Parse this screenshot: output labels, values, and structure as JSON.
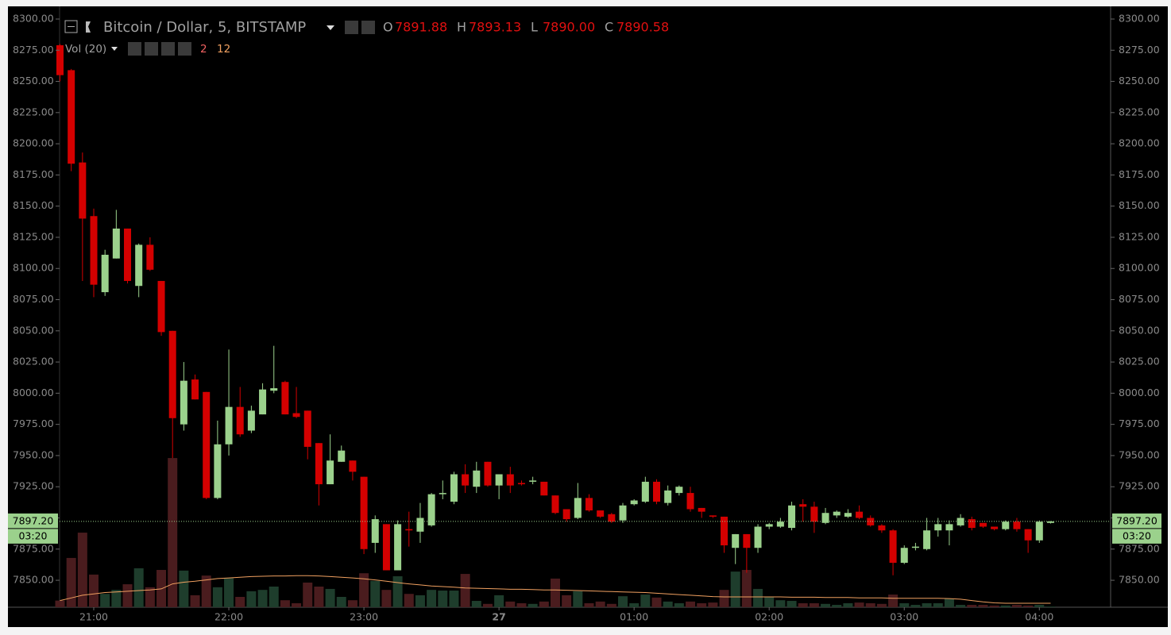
{
  "chart_data": {
    "type": "candlestick",
    "title": "Bitcoin / Dollar, 5, BITSTAMP",
    "legend": {
      "ohlc": [
        {
          "key": "O",
          "value": "7891.88"
        },
        {
          "key": "H",
          "value": "7893.13"
        },
        {
          "key": "L",
          "value": "7890.00"
        },
        {
          "key": "C",
          "value": "7890.58"
        }
      ],
      "volume_title": "Vol (20)"
    },
    "categories": [
      null,
      null,
      null,
      "21:00",
      null,
      null,
      null,
      null,
      null,
      null,
      null,
      null,
      null,
      null,
      null,
      "22:00",
      null,
      null,
      null,
      null,
      null,
      null,
      null,
      null,
      null,
      null,
      null,
      "23:00",
      null,
      null,
      null,
      null,
      null,
      null,
      null,
      null,
      null,
      null,
      null,
      "27",
      null,
      null,
      null,
      null,
      null,
      null,
      null,
      null,
      null,
      null,
      null,
      "01:00",
      null,
      null,
      null,
      null,
      null,
      null,
      null,
      null,
      null,
      null,
      null,
      "02:00",
      null,
      null,
      null,
      null,
      null,
      null,
      null,
      null,
      null,
      null,
      null,
      "03:00",
      null,
      null,
      null,
      null,
      null,
      null,
      null,
      null,
      null,
      null,
      null,
      "04:00",
      null
    ],
    "open": [
      8279,
      8259,
      8185,
      8142,
      8081,
      8108,
      8132,
      8086,
      8119,
      8090,
      8050,
      7975,
      8011,
      8001,
      7916,
      7959,
      7989,
      7970,
      7983,
      8002,
      8009,
      7984,
      7986,
      7960,
      7927,
      7945,
      7946,
      7933,
      7880,
      7895,
      7858,
      7891,
      7889,
      7894,
      7919,
      7913,
      7935,
      7925,
      7945,
      7926,
      7935,
      7928,
      7929,
      7929,
      7918,
      7907,
      7900,
      7916,
      7906,
      7903,
      7898,
      7911,
      7913,
      7929,
      7912,
      7920,
      7920,
      7908,
      7902,
      7901,
      7876,
      7887,
      7876,
      7893,
      7893,
      7892,
      7911,
      7909,
      7896,
      7902,
      7901,
      7905,
      7900,
      7894,
      7890,
      7864,
      7876,
      7875,
      7890,
      7890,
      7894,
      7899,
      7896,
      7893,
      7891,
      7897,
      7891,
      7882,
      7896
    ],
    "high": [
      8280,
      8260,
      8193,
      8148,
      8115,
      8147,
      8132,
      8120,
      8125,
      8090,
      8050,
      8025,
      8015,
      8001,
      7978,
      8035,
      8005,
      7990,
      8008,
      8038,
      8010,
      8005,
      7986,
      7960,
      7967,
      7958,
      7946,
      7933,
      7902,
      7895,
      7898,
      7905,
      7912,
      7920,
      7930,
      7937,
      7943,
      7945,
      7945,
      7935,
      7941,
      7930,
      7933,
      7929,
      7918,
      7907,
      7928,
      7919,
      7906,
      7904,
      7912,
      7915,
      7933,
      7931,
      7926,
      7926,
      7925,
      7908,
      7902,
      7901,
      7887,
      7887,
      7895,
      7896,
      7900,
      7913,
      7915,
      7913,
      7908,
      7906,
      7907,
      7910,
      7902,
      7895,
      7891,
      7878,
      7880,
      7900,
      7900,
      7898,
      7903,
      7901,
      7896,
      7893,
      7898,
      7900,
      7891,
      7898,
      7897.5
    ],
    "low": [
      8250,
      8178,
      8090,
      8077,
      8078,
      8108,
      8088,
      8077,
      8098,
      8046,
      7948,
      7970,
      7995,
      7915,
      7915,
      7950,
      7965,
      7968,
      7983,
      8000,
      7983,
      7980,
      7947,
      7910,
      7927,
      7945,
      7930,
      7871,
      7872,
      7858,
      7858,
      7877,
      7880,
      7893,
      7915,
      7911,
      7920,
      7920,
      7925,
      7915,
      7920,
      7926,
      7927,
      7918,
      7903,
      7897,
      7899,
      7905,
      7900,
      7896,
      7896,
      7910,
      7912,
      7911,
      7910,
      7918,
      7905,
      7900,
      7900,
      7872,
      7863,
      7856,
      7872,
      7891,
      7892,
      7890,
      7897,
      7888,
      7895,
      7900,
      7900,
      7899,
      7893,
      7888,
      7854,
      7863,
      7874,
      7874,
      7885,
      7878,
      7893,
      7890,
      7892,
      7890,
      7890,
      7889,
      7872,
      7880,
      7895.5
    ],
    "close": [
      8255,
      8184,
      8140,
      8087,
      8111,
      8132,
      8090,
      8119,
      8099,
      8049,
      7980,
      8010,
      7995,
      7916,
      7959,
      7989,
      7967,
      7986,
      8003,
      8004,
      7983,
      7981,
      7957,
      7927,
      7946,
      7954,
      7937,
      7875,
      7899,
      7858,
      7895,
      7890,
      7900,
      7919,
      7920,
      7935,
      7926,
      7938,
      7926,
      7935,
      7926,
      7927,
      7930,
      7918,
      7904,
      7899,
      7916,
      7906,
      7901,
      7897,
      7910,
      7914,
      7929,
      7913,
      7922,
      7925,
      7907,
      7905,
      7901,
      7878,
      7887,
      7876,
      7893,
      7895,
      7897,
      7910,
      7909,
      7897,
      7904,
      7905,
      7904,
      7900,
      7894,
      7890,
      7864,
      7876,
      7877,
      7890,
      7895,
      7895,
      7900,
      7892,
      7893,
      7891,
      7897,
      7891,
      7882,
      7897,
      7897.2
    ],
    "volume": [
      20,
      148,
      224,
      98,
      40,
      52,
      69,
      117,
      60,
      112,
      448,
      110,
      36,
      95,
      60,
      88,
      31,
      48,
      52,
      62,
      21,
      12,
      74,
      62,
      55,
      31,
      21,
      102,
      79,
      52,
      93,
      40,
      36,
      52,
      50,
      50,
      100,
      19,
      10,
      36,
      17,
      12,
      10,
      17,
      86,
      36,
      48,
      12,
      17,
      10,
      33,
      12,
      38,
      29,
      17,
      12,
      17,
      12,
      14,
      52,
      107,
      112,
      55,
      31,
      21,
      19,
      12,
      12,
      10,
      7,
      12,
      14,
      12,
      10,
      38,
      12,
      7,
      12,
      12,
      26,
      7,
      7,
      7,
      5,
      5,
      7,
      5,
      7,
      2
    ],
    "volume_ma": [
      20,
      28,
      36,
      40,
      44,
      46,
      48,
      50,
      52,
      55,
      70,
      75,
      78,
      82,
      86,
      88,
      90,
      92,
      93,
      94,
      94,
      95,
      95,
      94,
      92,
      90,
      88,
      85,
      82,
      78,
      74,
      70,
      67,
      64,
      62,
      60,
      58,
      57,
      56,
      55,
      54,
      54,
      53,
      52,
      52,
      51,
      50,
      49,
      48,
      47,
      46,
      45,
      44,
      42,
      40,
      38,
      36,
      34,
      32,
      31,
      31,
      31,
      31,
      31,
      31,
      30,
      30,
      30,
      29,
      29,
      29,
      28,
      28,
      28,
      27,
      27,
      27,
      27,
      27,
      26,
      24,
      20,
      16,
      13,
      12,
      12,
      12,
      12,
      12
    ],
    "volume_lim": [
      0,
      1800
    ],
    "ylim": [
      7828.4,
      8308.9
    ],
    "yticks": [
      {
        "value": 7850,
        "label": "7850.00"
      },
      {
        "value": 7875,
        "label": "7875.00"
      },
      {
        "value": 7900,
        "label": "7900.00"
      },
      {
        "value": 7925,
        "label": "7925.00"
      },
      {
        "value": 7950,
        "label": "7950.00"
      },
      {
        "value": 7975,
        "label": "7975.00"
      },
      {
        "value": 8000,
        "label": "8000.00"
      },
      {
        "value": 8025,
        "label": "8025.00"
      },
      {
        "value": 8050,
        "label": "8050.00"
      },
      {
        "value": 8075,
        "label": "8075.00"
      },
      {
        "value": 8100,
        "label": "8100.00"
      },
      {
        "value": 8125,
        "label": "8125.00"
      },
      {
        "value": 8150,
        "label": "8150.00"
      },
      {
        "value": 8175,
        "label": "8175.00"
      },
      {
        "value": 8200,
        "label": "8200.00"
      },
      {
        "value": 8225,
        "label": "8225.00"
      },
      {
        "value": 8250,
        "label": "8250.00"
      },
      {
        "value": 8275,
        "label": "8275.00"
      },
      {
        "value": 8300,
        "label": "8300.00"
      }
    ],
    "last_price": {
      "value": 7897.2,
      "label": "7897.20"
    },
    "countdown": "03:20",
    "up_color": "#9bd18c",
    "down_color": "#d40000",
    "volume_up_color": "#1e3d2c",
    "volume_down_color": "#4a1c1e",
    "volume_ma_color": "#f0a060",
    "grid": false
  }
}
